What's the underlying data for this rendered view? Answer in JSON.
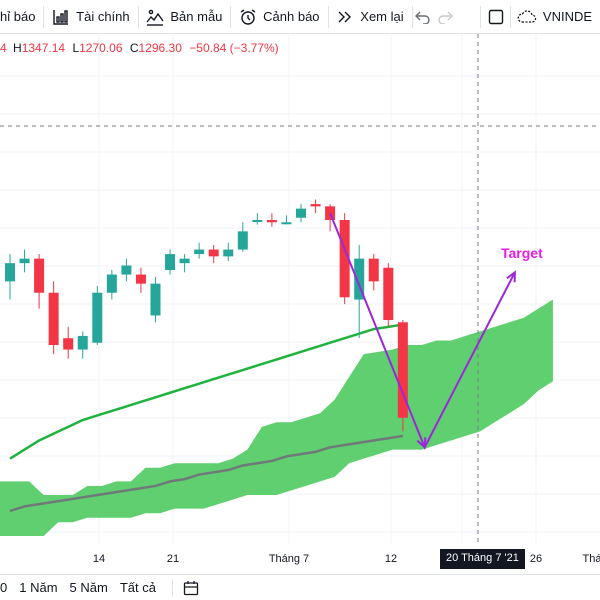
{
  "toolbar": {
    "items": [
      {
        "label": "hỉ báo",
        "icon": "indicators-icon"
      },
      {
        "label": "Tài chính",
        "icon": "financials-icon"
      },
      {
        "label": "Bản mẫu",
        "icon": "templates-icon"
      },
      {
        "label": "Cảnh báo",
        "icon": "alert-icon"
      },
      {
        "label": "Xem lại",
        "icon": "replay-icon"
      }
    ],
    "symbol": "VNINDE"
  },
  "ohlc": {
    "h_key": "H",
    "h_val": "1347.14",
    "l_key": "L",
    "l_val": "1270.06",
    "c_key": "C",
    "c_val": "1296.30",
    "change": "−50.84 (−3.77%)"
  },
  "annotation": {
    "target_label": "Target",
    "target_color": "#e91ee6"
  },
  "colors": {
    "up": "#26a69a",
    "down": "#f23645",
    "cloud": "#5fcf6f",
    "ma": "#1fb33e",
    "baseline": "#6f7a78",
    "arrow": "#9c27d9"
  },
  "xaxis": {
    "ticks": [
      "14",
      "21",
      "Tháng 7",
      "12",
      "26",
      "Thá"
    ],
    "crosshair_label": "20 Tháng 7 '21"
  },
  "bottombar": {
    "ranges": [
      "0",
      "1 Năm",
      "5 Năm",
      "Tất cả"
    ]
  },
  "chart_data": {
    "type": "candlestick",
    "candles": [
      {
        "o": 1330,
        "h": 1342,
        "l": 1322,
        "c": 1338
      },
      {
        "o": 1338,
        "h": 1344,
        "l": 1334,
        "c": 1340
      },
      {
        "o": 1340,
        "h": 1342,
        "l": 1318,
        "c": 1325
      },
      {
        "o": 1325,
        "h": 1330,
        "l": 1298,
        "c": 1302
      },
      {
        "o": 1305,
        "h": 1310,
        "l": 1296,
        "c": 1300
      },
      {
        "o": 1300,
        "h": 1308,
        "l": 1296,
        "c": 1306
      },
      {
        "o": 1303,
        "h": 1328,
        "l": 1302,
        "c": 1325
      },
      {
        "o": 1325,
        "h": 1335,
        "l": 1322,
        "c": 1333
      },
      {
        "o": 1333,
        "h": 1340,
        "l": 1330,
        "c": 1337
      },
      {
        "o": 1333,
        "h": 1336,
        "l": 1325,
        "c": 1329
      },
      {
        "o": 1315,
        "h": 1332,
        "l": 1312,
        "c": 1329
      },
      {
        "o": 1335,
        "h": 1344,
        "l": 1333,
        "c": 1342
      },
      {
        "o": 1338,
        "h": 1342,
        "l": 1334,
        "c": 1340
      },
      {
        "o": 1342,
        "h": 1347,
        "l": 1340,
        "c": 1344
      },
      {
        "o": 1344,
        "h": 1346,
        "l": 1338,
        "c": 1341
      },
      {
        "o": 1341,
        "h": 1347,
        "l": 1339,
        "c": 1344
      },
      {
        "o": 1344,
        "h": 1356,
        "l": 1343,
        "c": 1352
      },
      {
        "o": 1357,
        "h": 1360,
        "l": 1355,
        "c": 1357
      },
      {
        "o": 1357,
        "h": 1360,
        "l": 1354,
        "c": 1356
      },
      {
        "o": 1356,
        "h": 1359,
        "l": 1355,
        "c": 1356
      },
      {
        "o": 1358,
        "h": 1364,
        "l": 1356,
        "c": 1362
      },
      {
        "o": 1364,
        "h": 1366,
        "l": 1360,
        "c": 1363
      },
      {
        "o": 1363,
        "h": 1364,
        "l": 1352,
        "c": 1357
      },
      {
        "o": 1357,
        "h": 1360,
        "l": 1320,
        "c": 1323
      },
      {
        "o": 1322,
        "h": 1346,
        "l": 1305,
        "c": 1340
      },
      {
        "o": 1340,
        "h": 1342,
        "l": 1326,
        "c": 1330
      },
      {
        "o": 1336,
        "h": 1338,
        "l": 1310,
        "c": 1313
      },
      {
        "o": 1312,
        "h": 1313,
        "l": 1264,
        "c": 1270
      }
    ],
    "ma": [
      1252,
      1256,
      1260,
      1263,
      1266,
      1269,
      1271,
      1273,
      1275,
      1277,
      1279,
      1281,
      1283,
      1285,
      1287,
      1289,
      1291,
      1293,
      1295,
      1297,
      1299,
      1301,
      1303,
      1305,
      1307,
      1309,
      1310,
      1311
    ],
    "baseline": [
      1229,
      1231,
      1232,
      1233,
      1234,
      1235,
      1236,
      1237,
      1238,
      1239,
      1240,
      1242,
      1243,
      1245,
      1246,
      1247,
      1249,
      1250,
      1251,
      1253,
      1254,
      1255,
      1257,
      1258,
      1259,
      1260,
      1261,
      1262
    ],
    "cloud_top": [
      1242,
      1242,
      1242,
      1236,
      1236,
      1236,
      1240,
      1240,
      1242,
      1242,
      1248,
      1248,
      1250,
      1250,
      1250,
      1250,
      1252,
      1256,
      1266,
      1268,
      1268,
      1270,
      1272,
      1278,
      1288,
      1298,
      1299,
      1300,
      1302,
      1302,
      1304,
      1304,
      1306,
      1308,
      1310,
      1312,
      1314,
      1318,
      1322
    ],
    "cloud_bottom": [
      1218,
      1218,
      1218,
      1218,
      1224,
      1224,
      1226,
      1226,
      1226,
      1226,
      1228,
      1228,
      1230,
      1230,
      1230,
      1232,
      1234,
      1236,
      1236,
      1236,
      1238,
      1240,
      1242,
      1244,
      1250,
      1252,
      1254,
      1256,
      1256,
      1256,
      1258,
      1260,
      1262,
      1264,
      1268,
      1272,
      1276,
      1282,
      1286
    ],
    "projection": [
      {
        "bar": 22.0,
        "price": 1360
      },
      {
        "bar": 28.5,
        "price": 1257
      },
      {
        "bar": 34.7,
        "price": 1334
      }
    ]
  }
}
